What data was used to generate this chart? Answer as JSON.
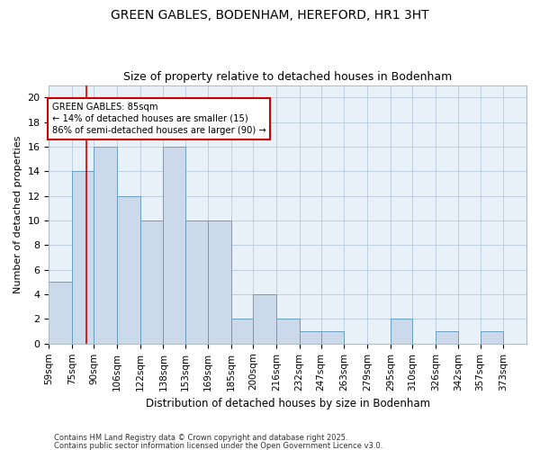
{
  "title1": "GREEN GABLES, BODENHAM, HEREFORD, HR1 3HT",
  "title2": "Size of property relative to detached houses in Bodenham",
  "xlabel": "Distribution of detached houses by size in Bodenham",
  "ylabel": "Number of detached properties",
  "bar_labels": [
    "59sqm",
    "75sqm",
    "90sqm",
    "106sqm",
    "122sqm",
    "138sqm",
    "153sqm",
    "169sqm",
    "185sqm",
    "200sqm",
    "216sqm",
    "232sqm",
    "247sqm",
    "263sqm",
    "279sqm",
    "295sqm",
    "310sqm",
    "326sqm",
    "342sqm",
    "357sqm",
    "373sqm"
  ],
  "bin_edges": [
    59,
    75,
    90,
    106,
    122,
    138,
    153,
    169,
    185,
    200,
    216,
    232,
    247,
    263,
    279,
    295,
    310,
    326,
    342,
    357,
    373
  ],
  "bar_values": [
    5,
    14,
    16,
    12,
    10,
    16,
    10,
    10,
    2,
    4,
    2,
    1,
    1,
    0,
    0,
    2,
    0,
    1,
    0,
    1
  ],
  "bar_color": "#ccd9ea",
  "bar_edgecolor": "#6a9fc0",
  "vline_x": 85,
  "vline_color": "#cc0000",
  "annotation_text": "GREEN GABLES: 85sqm\n← 14% of detached houses are smaller (15)\n86% of semi-detached houses are larger (90) →",
  "annotation_box_color": "#ffffff",
  "annotation_box_edgecolor": "#cc0000",
  "ylim": [
    0,
    21
  ],
  "yticks": [
    0,
    2,
    4,
    6,
    8,
    10,
    12,
    14,
    16,
    18,
    20
  ],
  "bg_color": "#e8f0f8",
  "footer1": "Contains HM Land Registry data © Crown copyright and database right 2025.",
  "footer2": "Contains public sector information licensed under the Open Government Licence v3.0."
}
